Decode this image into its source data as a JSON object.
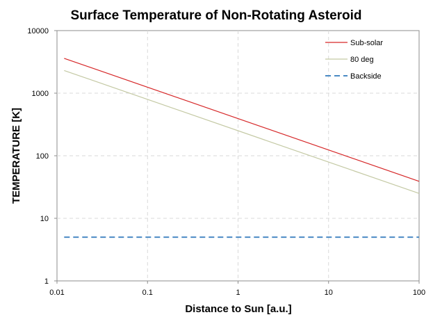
{
  "chart_data": {
    "type": "line",
    "title": "Surface Temperature of Non-Rotating Asteroid",
    "xlabel": "Distance to Sun [a.u.]",
    "ylabel": "TEMPERATURE [K]",
    "xscale": "log",
    "yscale": "log",
    "xlim": [
      0.01,
      100
    ],
    "ylim": [
      1,
      10000
    ],
    "x_ticks": [
      "0.01",
      "0.1",
      "1",
      "10",
      "100"
    ],
    "y_ticks": [
      "1",
      "10",
      "100",
      "1000",
      "10000"
    ],
    "grid": true,
    "legend_position": "top-right",
    "series": [
      {
        "name": "Sub-solar",
        "color": "#d62728",
        "style": "solid",
        "x": [
          0.012,
          100
        ],
        "y": [
          3600,
          39
        ]
      },
      {
        "name": "80 deg",
        "color": "#c4c9a4",
        "style": "solid",
        "x": [
          0.012,
          100
        ],
        "y": [
          2300,
          25
        ]
      },
      {
        "name": "Backside",
        "color": "#4a8ac4",
        "style": "dashed",
        "x": [
          0.012,
          100
        ],
        "y": [
          5,
          5
        ]
      }
    ]
  }
}
